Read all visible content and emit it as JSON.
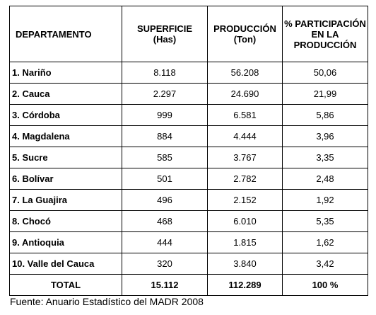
{
  "table": {
    "headers": {
      "departamento": "DEPARTAMENTO",
      "superficie": [
        "SUPERFICIE",
        "(Has)"
      ],
      "produccion": [
        "PRODUCCIÓN",
        "(Ton)"
      ],
      "participacion": [
        "% PARTICIPACIÓN",
        "EN LA",
        "PRODUCCIÓN"
      ]
    },
    "rows": [
      {
        "departamento": "1. Nariño",
        "superficie": "8.118",
        "produccion": "56.208",
        "participacion": "50,06"
      },
      {
        "departamento": "2. Cauca",
        "superficie": "2.297",
        "produccion": "24.690",
        "participacion": "21,99"
      },
      {
        "departamento": "3. Córdoba",
        "superficie": "999",
        "produccion": "6.581",
        "participacion": "5,86"
      },
      {
        "departamento": "4. Magdalena",
        "superficie": "884",
        "produccion": "4.444",
        "participacion": "3,96"
      },
      {
        "departamento": "5. Sucre",
        "superficie": "585",
        "produccion": "3.767",
        "participacion": "3,35"
      },
      {
        "departamento": "6. Bolívar",
        "superficie": "501",
        "produccion": "2.782",
        "participacion": "2,48"
      },
      {
        "departamento": "7. La Guajira",
        "superficie": "496",
        "produccion": "2.152",
        "participacion": "1,92"
      },
      {
        "departamento": "8. Chocó",
        "superficie": "468",
        "produccion": "6.010",
        "participacion": "5,35"
      },
      {
        "departamento": "9. Antioquia",
        "superficie": "444",
        "produccion": "1.815",
        "participacion": "1,62"
      },
      {
        "departamento": "10. Valle del Cauca",
        "superficie": "320",
        "produccion": "3.840",
        "participacion": "3,42"
      }
    ],
    "total": {
      "label": "TOTAL",
      "superficie": "15.112",
      "produccion": "112.289",
      "participacion": "100 %"
    }
  },
  "source": "Fuente: Anuario Estadístico del MADR 2008"
}
